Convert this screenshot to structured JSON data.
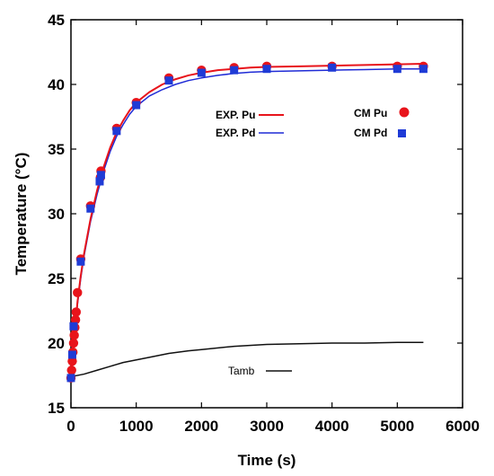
{
  "chart_data": {
    "type": "line",
    "xlabel": "Time (s)",
    "ylabel": "Temperature (°C)",
    "xlim": [
      0,
      6000
    ],
    "ylim": [
      15,
      45
    ],
    "x_ticks": [
      0,
      1000,
      2000,
      3000,
      4000,
      5000,
      6000
    ],
    "y_ticks": [
      15,
      20,
      25,
      30,
      35,
      40,
      45
    ],
    "grid": false,
    "colors": {
      "exp_pu": "#e8141b",
      "exp_pd": "#1f2bd6",
      "tamb": "#111111",
      "cm_pu": "#e8141b",
      "cm_pd": "#1f3bd6"
    },
    "series": [
      {
        "name": "EXP. Pu",
        "kind": "line",
        "x": [
          0,
          20,
          50,
          100,
          150,
          200,
          300,
          400,
          500,
          600,
          700,
          800,
          900,
          1000,
          1200,
          1400,
          1600,
          1800,
          2000,
          2250,
          2500,
          2750,
          3000,
          3500,
          4000,
          4500,
          5000,
          5400
        ],
        "y": [
          17.3,
          18.5,
          20.5,
          23.2,
          25.2,
          26.9,
          29.6,
          31.8,
          33.6,
          35.1,
          36.3,
          37.2,
          38.0,
          38.6,
          39.4,
          40.0,
          40.4,
          40.7,
          40.9,
          41.1,
          41.2,
          41.3,
          41.35,
          41.4,
          41.45,
          41.5,
          41.55,
          41.6
        ]
      },
      {
        "name": "EXP. Pd",
        "kind": "line",
        "x": [
          0,
          20,
          50,
          100,
          150,
          200,
          300,
          400,
          500,
          600,
          700,
          800,
          900,
          1000,
          1200,
          1400,
          1600,
          1800,
          2000,
          2250,
          2500,
          2750,
          3000,
          3500,
          4000,
          4500,
          5000,
          5400
        ],
        "y": [
          17.3,
          18.4,
          20.3,
          23.0,
          25.0,
          26.7,
          29.4,
          31.5,
          33.3,
          34.8,
          36.0,
          36.9,
          37.7,
          38.3,
          39.1,
          39.6,
          40.0,
          40.3,
          40.5,
          40.7,
          40.85,
          40.95,
          41.0,
          41.05,
          41.1,
          41.15,
          41.2,
          41.2
        ]
      },
      {
        "name": "Tamb",
        "kind": "line",
        "x": [
          0,
          200,
          400,
          600,
          800,
          1000,
          1200,
          1500,
          1800,
          2000,
          2500,
          3000,
          3500,
          4000,
          4500,
          5000,
          5400
        ],
        "y": [
          17.4,
          17.6,
          17.9,
          18.2,
          18.5,
          18.7,
          18.9,
          19.2,
          19.4,
          19.5,
          19.75,
          19.9,
          19.95,
          20.0,
          20.0,
          20.05,
          20.05
        ]
      },
      {
        "name": "CM Pu",
        "kind": "scatter",
        "marker": "circle",
        "x": [
          0,
          10,
          20,
          30,
          40,
          50,
          60,
          70,
          80,
          100,
          150,
          300,
          450,
          460,
          700,
          1000,
          1500,
          2000,
          2500,
          3000,
          4000,
          5000,
          5400
        ],
        "y": [
          17.3,
          17.9,
          18.6,
          19.3,
          20.0,
          20.6,
          21.2,
          21.8,
          22.4,
          23.9,
          26.5,
          30.6,
          32.8,
          33.3,
          36.6,
          38.6,
          40.5,
          41.1,
          41.3,
          41.4,
          41.4,
          41.4,
          41.4
        ]
      },
      {
        "name": "CM Pd",
        "kind": "scatter",
        "marker": "square",
        "x": [
          0,
          20,
          40,
          150,
          300,
          440,
          460,
          700,
          1000,
          1500,
          2000,
          2500,
          3000,
          4000,
          5000,
          5400
        ],
        "y": [
          17.3,
          19.1,
          21.3,
          26.3,
          30.4,
          32.5,
          33.0,
          36.4,
          38.4,
          40.3,
          40.9,
          41.1,
          41.2,
          41.3,
          41.2,
          41.2
        ]
      }
    ]
  }
}
